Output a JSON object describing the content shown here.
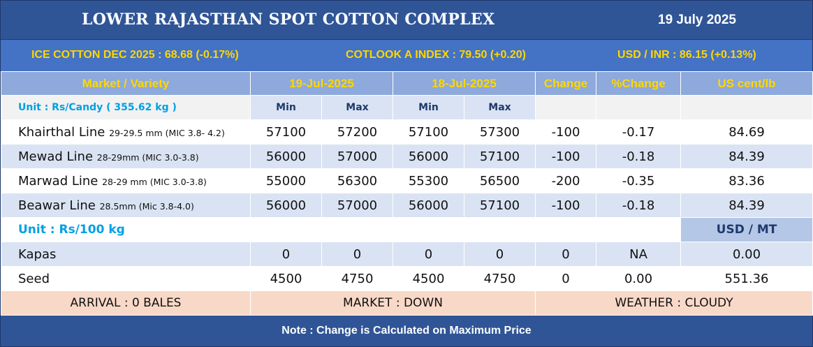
{
  "header": {
    "title": "LOWER RAJASTHAN SPOT COTTON COMPLEX",
    "date": "19 July 2025"
  },
  "ticker": {
    "ice": "ICE COTTON DEC 2025 : 68.68 (-0.17%)",
    "cotlook": "COTLOOK A INDEX : 79.50 (+0.20)",
    "usd_inr": "USD / INR : 86.15 (+0.13%)"
  },
  "columns": {
    "market": "Market / Variety",
    "date1": "19-Jul-2025",
    "date2": "18-Jul-2025",
    "change": "Change",
    "pct_change": "%Change",
    "us_cent": "US cent/lb",
    "min": "Min",
    "max": "Max"
  },
  "unit_candy": "Unit : Rs/Candy ( 355.62 kg )",
  "cotton_rows": [
    {
      "name": "Khairthal Line",
      "spec": "29-29.5 mm (MIC 3.8- 4.2)",
      "min1": "57100",
      "max1": "57200",
      "min2": "57100",
      "max2": "57300",
      "change": "-100",
      "pct": "-0.17",
      "us": "84.69"
    },
    {
      "name": "Mewad Line",
      "spec": "28-29mm (MIC 3.0-3.8)",
      "min1": "56000",
      "max1": "57000",
      "min2": "56000",
      "max2": "57100",
      "change": "-100",
      "pct": "-0.18",
      "us": "84.39"
    },
    {
      "name": "Marwad Line",
      "spec": "28-29 mm (MIC 3.0-3.8)",
      "min1": "55000",
      "max1": "56300",
      "min2": "55300",
      "max2": "56500",
      "change": "-200",
      "pct": "-0.35",
      "us": "83.36"
    },
    {
      "name": "Beawar Line",
      "spec": "28.5mm (Mic 3.8-4.0)",
      "min1": "56000",
      "max1": "57000",
      "min2": "56000",
      "max2": "57100",
      "change": "-100",
      "pct": "-0.18",
      "us": "84.39"
    }
  ],
  "unit_kg": "Unit : Rs/100 kg",
  "usd_mt": "USD / MT",
  "other_rows": [
    {
      "name": "Kapas",
      "min1": "0",
      "max1": "0",
      "min2": "0",
      "max2": "0",
      "change": "0",
      "pct": "NA",
      "us": "0.00"
    },
    {
      "name": "Seed",
      "min1": "4500",
      "max1": "4750",
      "min2": "4500",
      "max2": "4750",
      "change": "0",
      "pct": "0.00",
      "us": "551.36"
    }
  ],
  "status": {
    "arrival": "ARRIVAL : 0 BALES",
    "market": "MARKET : DOWN",
    "weather": "WEATHER : CLOUDY"
  },
  "note": "Note : Change is Calculated on Maximum Price",
  "colors": {
    "title_bg": "#2f5597",
    "ticker_bg": "#4472c4",
    "ticker_text": "#ffd700",
    "header_bg": "#8ea9db",
    "alt_row": "#dae3f3",
    "status_bg": "#f8d9c8",
    "unit_text": "#00a0e3"
  }
}
